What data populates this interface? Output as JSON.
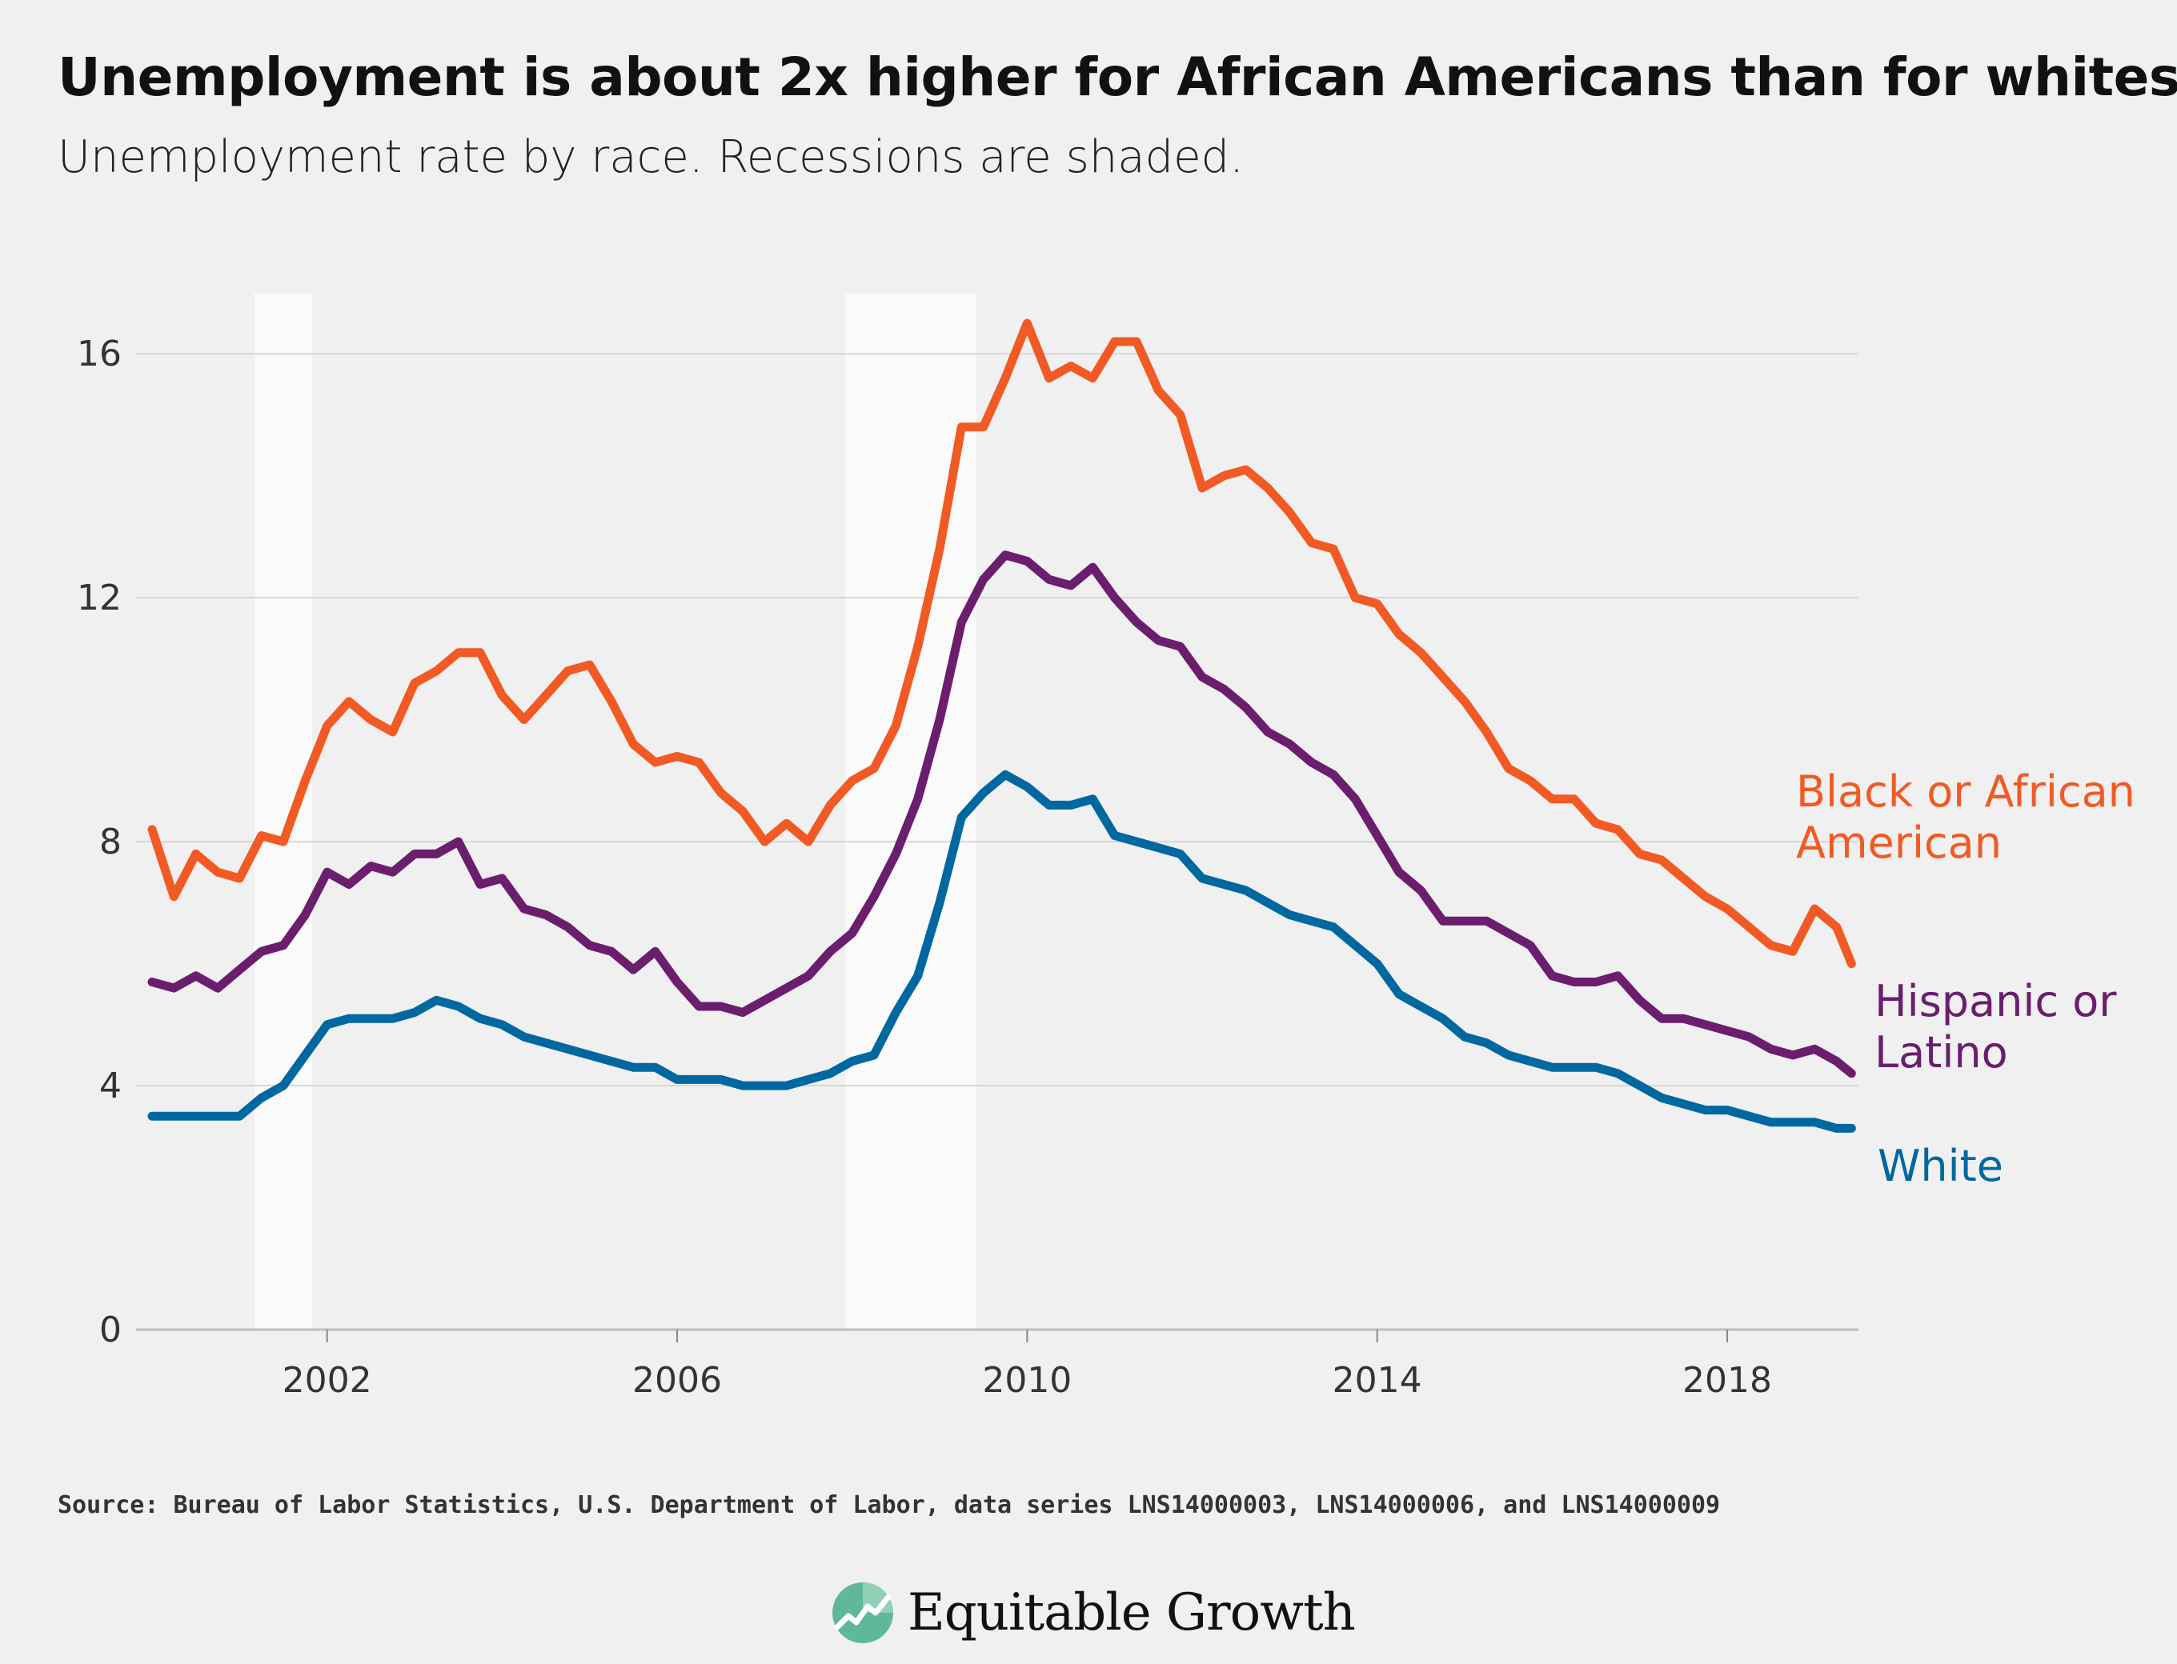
{
  "title": "Unemployment is about 2x higher for African Americans than for whites",
  "subtitle": "Unemployment rate by race. Recessions are shaded.",
  "source": "Source: Bureau of Labor Statistics, U.S. Department of Labor, data series LNS14000003, LNS14000006, and LNS14000009",
  "brand": {
    "name": "Equitable Growth",
    "icon": "growth-chart-logo-icon"
  },
  "chart_data": {
    "type": "line",
    "title": "Unemployment is about 2x higher for African Americans than for whites",
    "subtitle": "Unemployment rate by race. Recessions are shaded.",
    "xlim": [
      2000.0,
      2019.5
    ],
    "ylim": [
      0,
      17
    ],
    "xticks": [
      2002,
      2006,
      2010,
      2014,
      2018
    ],
    "yticks": [
      0,
      4,
      8,
      12,
      16
    ],
    "grid": "horizontal",
    "recessions": [
      [
        2001.17,
        2001.83
      ],
      [
        2007.92,
        2009.42
      ]
    ],
    "recession_color": "#fafafa",
    "series": [
      {
        "name": "Black or African American",
        "label_lines": [
          "Black or African",
          "American"
        ],
        "color": "#f15a24",
        "x": [
          2000.0,
          2000.25,
          2000.5,
          2000.75,
          2001.0,
          2001.25,
          2001.5,
          2001.75,
          2002.0,
          2002.25,
          2002.5,
          2002.75,
          2003.0,
          2003.25,
          2003.5,
          2003.75,
          2004.0,
          2004.25,
          2004.5,
          2004.75,
          2005.0,
          2005.25,
          2005.5,
          2005.75,
          2006.0,
          2006.25,
          2006.5,
          2006.75,
          2007.0,
          2007.25,
          2007.5,
          2007.75,
          2008.0,
          2008.25,
          2008.5,
          2008.75,
          2009.0,
          2009.25,
          2009.5,
          2009.75,
          2010.0,
          2010.25,
          2010.5,
          2010.75,
          2011.0,
          2011.25,
          2011.5,
          2011.75,
          2012.0,
          2012.25,
          2012.5,
          2012.75,
          2013.0,
          2013.25,
          2013.5,
          2013.75,
          2014.0,
          2014.25,
          2014.5,
          2014.75,
          2015.0,
          2015.25,
          2015.5,
          2015.75,
          2016.0,
          2016.25,
          2016.5,
          2016.75,
          2017.0,
          2017.25,
          2017.5,
          2017.75,
          2018.0,
          2018.25,
          2018.5,
          2018.75,
          2019.0,
          2019.25,
          2019.42
        ],
        "y": [
          8.2,
          7.1,
          7.8,
          7.5,
          7.4,
          8.1,
          8.0,
          9.0,
          9.9,
          10.3,
          10.0,
          9.8,
          10.6,
          10.8,
          11.1,
          11.1,
          10.4,
          10.0,
          10.4,
          10.8,
          10.9,
          10.3,
          9.6,
          9.3,
          9.4,
          9.3,
          8.8,
          8.5,
          8.0,
          8.3,
          8.0,
          8.6,
          9.0,
          9.2,
          9.9,
          11.2,
          12.8,
          14.8,
          14.8,
          15.6,
          16.5,
          15.6,
          15.8,
          15.6,
          16.2,
          16.2,
          15.4,
          15.0,
          13.8,
          14.0,
          14.1,
          13.8,
          13.4,
          12.9,
          12.8,
          12.0,
          11.9,
          11.4,
          11.1,
          10.7,
          10.3,
          9.8,
          9.2,
          9.0,
          8.7,
          8.7,
          8.3,
          8.2,
          7.8,
          7.7,
          7.4,
          7.1,
          6.9,
          6.6,
          6.3,
          6.2,
          6.9,
          6.6,
          6.0
        ]
      },
      {
        "name": "Hispanic or Latino",
        "label_lines": [
          "Hispanic or",
          "Latino"
        ],
        "color": "#6b1d6e",
        "x": [
          2000.0,
          2000.25,
          2000.5,
          2000.75,
          2001.0,
          2001.25,
          2001.5,
          2001.75,
          2002.0,
          2002.25,
          2002.5,
          2002.75,
          2003.0,
          2003.25,
          2003.5,
          2003.75,
          2004.0,
          2004.25,
          2004.5,
          2004.75,
          2005.0,
          2005.25,
          2005.5,
          2005.75,
          2006.0,
          2006.25,
          2006.5,
          2006.75,
          2007.0,
          2007.25,
          2007.5,
          2007.75,
          2008.0,
          2008.25,
          2008.5,
          2008.75,
          2009.0,
          2009.25,
          2009.5,
          2009.75,
          2010.0,
          2010.25,
          2010.5,
          2010.75,
          2011.0,
          2011.25,
          2011.5,
          2011.75,
          2012.0,
          2012.25,
          2012.5,
          2012.75,
          2013.0,
          2013.25,
          2013.5,
          2013.75,
          2014.0,
          2014.25,
          2014.5,
          2014.75,
          2015.0,
          2015.25,
          2015.5,
          2015.75,
          2016.0,
          2016.25,
          2016.5,
          2016.75,
          2017.0,
          2017.25,
          2017.5,
          2017.75,
          2018.0,
          2018.25,
          2018.5,
          2018.75,
          2019.0,
          2019.25,
          2019.42
        ],
        "y": [
          5.7,
          5.6,
          5.8,
          5.6,
          5.9,
          6.2,
          6.3,
          6.8,
          7.5,
          7.3,
          7.6,
          7.5,
          7.8,
          7.8,
          8.0,
          7.3,
          7.4,
          6.9,
          6.8,
          6.6,
          6.3,
          6.2,
          5.9,
          6.2,
          5.7,
          5.3,
          5.3,
          5.2,
          5.4,
          5.6,
          5.8,
          6.2,
          6.5,
          7.1,
          7.8,
          8.7,
          10.0,
          11.6,
          12.3,
          12.7,
          12.6,
          12.3,
          12.2,
          12.5,
          12.0,
          11.6,
          11.3,
          11.2,
          10.7,
          10.5,
          10.2,
          9.8,
          9.6,
          9.3,
          9.1,
          8.7,
          8.1,
          7.5,
          7.2,
          6.7,
          6.7,
          6.7,
          6.5,
          6.3,
          5.8,
          5.7,
          5.7,
          5.8,
          5.4,
          5.1,
          5.1,
          5.0,
          4.9,
          4.8,
          4.6,
          4.5,
          4.6,
          4.4,
          4.2
        ]
      },
      {
        "name": "White",
        "label_lines": [
          "White"
        ],
        "color": "#0068a0",
        "x": [
          2000.0,
          2000.25,
          2000.5,
          2000.75,
          2001.0,
          2001.25,
          2001.5,
          2001.75,
          2002.0,
          2002.25,
          2002.5,
          2002.75,
          2003.0,
          2003.25,
          2003.5,
          2003.75,
          2004.0,
          2004.25,
          2004.5,
          2004.75,
          2005.0,
          2005.25,
          2005.5,
          2005.75,
          2006.0,
          2006.25,
          2006.5,
          2006.75,
          2007.0,
          2007.25,
          2007.5,
          2007.75,
          2008.0,
          2008.25,
          2008.5,
          2008.75,
          2009.0,
          2009.25,
          2009.5,
          2009.75,
          2010.0,
          2010.25,
          2010.5,
          2010.75,
          2011.0,
          2011.25,
          2011.5,
          2011.75,
          2012.0,
          2012.25,
          2012.5,
          2012.75,
          2013.0,
          2013.25,
          2013.5,
          2013.75,
          2014.0,
          2014.25,
          2014.5,
          2014.75,
          2015.0,
          2015.25,
          2015.5,
          2015.75,
          2016.0,
          2016.25,
          2016.5,
          2016.75,
          2017.0,
          2017.25,
          2017.5,
          2017.75,
          2018.0,
          2018.25,
          2018.5,
          2018.75,
          2019.0,
          2019.25,
          2019.42
        ],
        "y": [
          3.5,
          3.5,
          3.5,
          3.5,
          3.5,
          3.8,
          4.0,
          4.5,
          5.0,
          5.1,
          5.1,
          5.1,
          5.2,
          5.4,
          5.3,
          5.1,
          5.0,
          4.8,
          4.7,
          4.6,
          4.5,
          4.4,
          4.3,
          4.3,
          4.1,
          4.1,
          4.1,
          4.0,
          4.0,
          4.0,
          4.1,
          4.2,
          4.4,
          4.5,
          5.2,
          5.8,
          7.0,
          8.4,
          8.8,
          9.1,
          8.9,
          8.6,
          8.6,
          8.7,
          8.1,
          8.0,
          7.9,
          7.8,
          7.4,
          7.3,
          7.2,
          7.0,
          6.8,
          6.7,
          6.6,
          6.3,
          6.0,
          5.5,
          5.3,
          5.1,
          4.8,
          4.7,
          4.5,
          4.4,
          4.3,
          4.3,
          4.3,
          4.2,
          4.0,
          3.8,
          3.7,
          3.6,
          3.6,
          3.5,
          3.4,
          3.4,
          3.4,
          3.3,
          3.3
        ]
      }
    ]
  }
}
